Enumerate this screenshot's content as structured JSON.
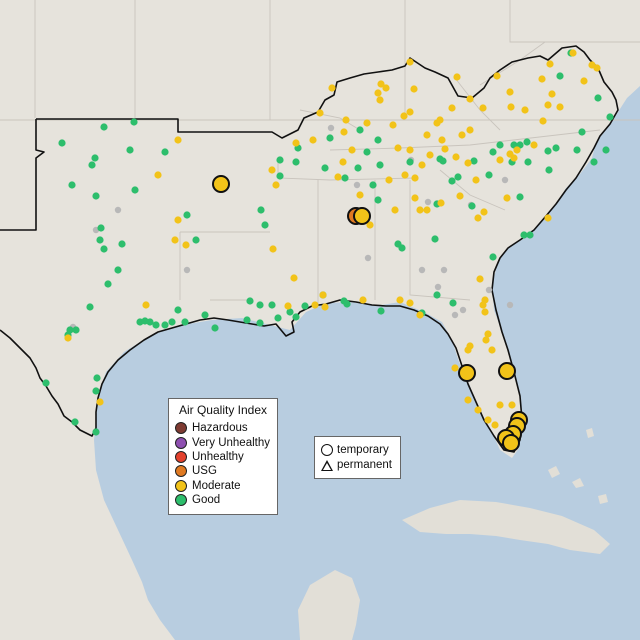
{
  "legend": {
    "title": "Air Quality Index",
    "categories": [
      {
        "label": "Hazardous",
        "color": "#7e3b32"
      },
      {
        "label": "Very Unhealthy",
        "color": "#8e4fb0"
      },
      {
        "label": "Unhealthy",
        "color": "#e3412d"
      },
      {
        "label": "USG",
        "color": "#e07a22"
      },
      {
        "label": "Moderate",
        "color": "#f2c319"
      },
      {
        "label": "Good",
        "color": "#2dbe6c"
      }
    ],
    "shapes": [
      {
        "label": "temporary",
        "icon": "circle-icon"
      },
      {
        "label": "permanent",
        "icon": "triangle-icon"
      }
    ]
  },
  "colors": {
    "land": "#e6e3dc",
    "water": "#b8cde0",
    "region_border": "#111111",
    "state_border": "#c9c4bd",
    "inactive_monitor": "#b8b8b8"
  },
  "monitors_small": [
    [
      62,
      143,
      "Good"
    ],
    [
      104,
      127,
      "Good"
    ],
    [
      134,
      122,
      "Good"
    ],
    [
      95,
      158,
      "Good"
    ],
    [
      92,
      165,
      "Good"
    ],
    [
      130,
      150,
      "Good"
    ],
    [
      165,
      152,
      "Good"
    ],
    [
      72,
      185,
      "Good"
    ],
    [
      96,
      196,
      "Good"
    ],
    [
      135,
      190,
      "Good"
    ],
    [
      101,
      228,
      "Good"
    ],
    [
      100,
      240,
      "Good"
    ],
    [
      122,
      244,
      "Good"
    ],
    [
      104,
      249,
      "Good"
    ],
    [
      118,
      270,
      "Good"
    ],
    [
      108,
      284,
      "Good"
    ],
    [
      90,
      307,
      "Good"
    ],
    [
      140,
      322,
      "Good"
    ],
    [
      145,
      321,
      "Good"
    ],
    [
      150,
      322,
      "Good"
    ],
    [
      156,
      325,
      "Good"
    ],
    [
      70,
      330,
      "Good"
    ],
    [
      68,
      335,
      "Good"
    ],
    [
      76,
      330,
      "Good"
    ],
    [
      165,
      325,
      "Good"
    ],
    [
      178,
      310,
      "Good"
    ],
    [
      172,
      322,
      "Good"
    ],
    [
      185,
      322,
      "Good"
    ],
    [
      46,
      383,
      "Good"
    ],
    [
      97,
      378,
      "Good"
    ],
    [
      96,
      391,
      "Good"
    ],
    [
      75,
      422,
      "Good"
    ],
    [
      96,
      432,
      "Good"
    ],
    [
      187,
      215,
      "Good"
    ],
    [
      196,
      240,
      "Good"
    ],
    [
      205,
      315,
      "Good"
    ],
    [
      215,
      328,
      "Good"
    ],
    [
      250,
      301,
      "Good"
    ],
    [
      260,
      305,
      "Good"
    ],
    [
      247,
      320,
      "Good"
    ],
    [
      260,
      323,
      "Good"
    ],
    [
      272,
      305,
      "Good"
    ],
    [
      278,
      318,
      "Good"
    ],
    [
      290,
      312,
      "Good"
    ],
    [
      296,
      317,
      "Good"
    ],
    [
      261,
      210,
      "Good"
    ],
    [
      265,
      225,
      "Good"
    ],
    [
      280,
      160,
      "Good"
    ],
    [
      296,
      162,
      "Good"
    ],
    [
      298,
      148,
      "Good"
    ],
    [
      280,
      176,
      "Good"
    ],
    [
      330,
      138,
      "Good"
    ],
    [
      325,
      168,
      "Good"
    ],
    [
      345,
      178,
      "Good"
    ],
    [
      358,
      168,
      "Good"
    ],
    [
      380,
      165,
      "Good"
    ],
    [
      373,
      185,
      "Good"
    ],
    [
      378,
      200,
      "Good"
    ],
    [
      398,
      244,
      "Good"
    ],
    [
      402,
      248,
      "Good"
    ],
    [
      435,
      239,
      "Good"
    ],
    [
      437,
      295,
      "Good"
    ],
    [
      453,
      303,
      "Good"
    ],
    [
      422,
      313,
      "Good"
    ],
    [
      344,
      301,
      "Good"
    ],
    [
      347,
      304,
      "Good"
    ],
    [
      381,
      311,
      "Good"
    ],
    [
      305,
      306,
      "Good"
    ],
    [
      323,
      295,
      "Good"
    ],
    [
      410,
      162,
      "Good"
    ],
    [
      440,
      159,
      "Good"
    ],
    [
      443,
      161,
      "Good"
    ],
    [
      474,
      161,
      "Good"
    ],
    [
      500,
      145,
      "Good"
    ],
    [
      493,
      152,
      "Good"
    ],
    [
      514,
      145,
      "Good"
    ],
    [
      520,
      145,
      "Good"
    ],
    [
      527,
      142,
      "Good"
    ],
    [
      512,
      162,
      "Good"
    ],
    [
      528,
      162,
      "Good"
    ],
    [
      548,
      151,
      "Good"
    ],
    [
      520,
      197,
      "Good"
    ],
    [
      524,
      235,
      "Good"
    ],
    [
      530,
      235,
      "Good"
    ],
    [
      493,
      257,
      "Good"
    ],
    [
      556,
      148,
      "Good"
    ],
    [
      577,
      150,
      "Good"
    ],
    [
      582,
      132,
      "Good"
    ],
    [
      594,
      162,
      "Good"
    ],
    [
      606,
      150,
      "Good"
    ],
    [
      610,
      117,
      "Good"
    ],
    [
      598,
      98,
      "Good"
    ],
    [
      560,
      76,
      "Good"
    ],
    [
      571,
      53,
      "Good"
    ],
    [
      549,
      170,
      "Good"
    ],
    [
      489,
      175,
      "Good"
    ],
    [
      437,
      204,
      "Good"
    ],
    [
      452,
      181,
      "Good"
    ],
    [
      367,
      152,
      "Good"
    ],
    [
      378,
      140,
      "Good"
    ],
    [
      360,
      130,
      "Good"
    ],
    [
      472,
      206,
      "Good"
    ],
    [
      458,
      177,
      "Good"
    ],
    [
      178,
      140,
      "Moderate"
    ],
    [
      158,
      175,
      "Moderate"
    ],
    [
      178,
      220,
      "Moderate"
    ],
    [
      175,
      240,
      "Moderate"
    ],
    [
      186,
      245,
      "Moderate"
    ],
    [
      146,
      305,
      "Moderate"
    ],
    [
      68,
      338,
      "Moderate"
    ],
    [
      100,
      402,
      "Moderate"
    ],
    [
      273,
      249,
      "Moderate"
    ],
    [
      272,
      170,
      "Moderate"
    ],
    [
      276,
      185,
      "Moderate"
    ],
    [
      294,
      278,
      "Moderate"
    ],
    [
      288,
      306,
      "Moderate"
    ],
    [
      315,
      305,
      "Moderate"
    ],
    [
      325,
      307,
      "Moderate"
    ],
    [
      323,
      295,
      "Moderate"
    ],
    [
      363,
      300,
      "Moderate"
    ],
    [
      400,
      300,
      "Moderate"
    ],
    [
      410,
      303,
      "Moderate"
    ],
    [
      420,
      315,
      "Moderate"
    ],
    [
      296,
      143,
      "Moderate"
    ],
    [
      313,
      140,
      "Moderate"
    ],
    [
      346,
      120,
      "Moderate"
    ],
    [
      344,
      132,
      "Moderate"
    ],
    [
      352,
      150,
      "Moderate"
    ],
    [
      343,
      162,
      "Moderate"
    ],
    [
      360,
      195,
      "Moderate"
    ],
    [
      365,
      215,
      "Moderate"
    ],
    [
      370,
      225,
      "Moderate"
    ],
    [
      393,
      125,
      "Moderate"
    ],
    [
      398,
      148,
      "Moderate"
    ],
    [
      405,
      175,
      "Moderate"
    ],
    [
      410,
      150,
      "Moderate"
    ],
    [
      410,
      112,
      "Moderate"
    ],
    [
      427,
      135,
      "Moderate"
    ],
    [
      380,
      100,
      "Moderate"
    ],
    [
      386,
      88,
      "Moderate"
    ],
    [
      381,
      84,
      "Moderate"
    ],
    [
      414,
      89,
      "Moderate"
    ],
    [
      410,
      62,
      "Moderate"
    ],
    [
      457,
      77,
      "Moderate"
    ],
    [
      452,
      108,
      "Moderate"
    ],
    [
      470,
      99,
      "Moderate"
    ],
    [
      497,
      76,
      "Moderate"
    ],
    [
      510,
      92,
      "Moderate"
    ],
    [
      542,
      79,
      "Moderate"
    ],
    [
      552,
      94,
      "Moderate"
    ],
    [
      548,
      105,
      "Moderate"
    ],
    [
      543,
      121,
      "Moderate"
    ],
    [
      525,
      110,
      "Moderate"
    ],
    [
      511,
      107,
      "Moderate"
    ],
    [
      483,
      108,
      "Moderate"
    ],
    [
      470,
      130,
      "Moderate"
    ],
    [
      462,
      135,
      "Moderate"
    ],
    [
      445,
      149,
      "Moderate"
    ],
    [
      430,
      155,
      "Moderate"
    ],
    [
      422,
      165,
      "Moderate"
    ],
    [
      415,
      178,
      "Moderate"
    ],
    [
      415,
      198,
      "Moderate"
    ],
    [
      420,
      210,
      "Moderate"
    ],
    [
      427,
      210,
      "Moderate"
    ],
    [
      441,
      203,
      "Moderate"
    ],
    [
      460,
      196,
      "Moderate"
    ],
    [
      468,
      163,
      "Moderate"
    ],
    [
      476,
      180,
      "Moderate"
    ],
    [
      500,
      160,
      "Moderate"
    ],
    [
      510,
      154,
      "Moderate"
    ],
    [
      517,
      150,
      "Moderate"
    ],
    [
      534,
      145,
      "Moderate"
    ],
    [
      514,
      158,
      "Moderate"
    ],
    [
      507,
      198,
      "Moderate"
    ],
    [
      478,
      218,
      "Moderate"
    ],
    [
      484,
      212,
      "Moderate"
    ],
    [
      548,
      218,
      "Moderate"
    ],
    [
      560,
      107,
      "Moderate"
    ],
    [
      584,
      81,
      "Moderate"
    ],
    [
      592,
      65,
      "Moderate"
    ],
    [
      597,
      68,
      "Moderate"
    ],
    [
      573,
      53,
      "Moderate"
    ],
    [
      550,
      64,
      "Moderate"
    ],
    [
      483,
      305,
      "Moderate"
    ],
    [
      485,
      312,
      "Moderate"
    ],
    [
      488,
      334,
      "Moderate"
    ],
    [
      492,
      350,
      "Moderate"
    ],
    [
      470,
      346,
      "Moderate"
    ],
    [
      455,
      368,
      "Moderate"
    ],
    [
      468,
      400,
      "Moderate"
    ],
    [
      478,
      410,
      "Moderate"
    ],
    [
      488,
      420,
      "Moderate"
    ],
    [
      495,
      425,
      "Moderate"
    ],
    [
      500,
      405,
      "Moderate"
    ],
    [
      512,
      405,
      "Moderate"
    ],
    [
      338,
      177,
      "Moderate"
    ],
    [
      378,
      93,
      "Moderate"
    ],
    [
      404,
      116,
      "Moderate"
    ],
    [
      332,
      88,
      "Moderate"
    ],
    [
      320,
      113,
      "Moderate"
    ],
    [
      480,
      279,
      "Moderate"
    ],
    [
      468,
      350,
      "Moderate"
    ],
    [
      367,
      123,
      "Moderate"
    ],
    [
      437,
      123,
      "Moderate"
    ],
    [
      456,
      157,
      "Moderate"
    ],
    [
      440,
      120,
      "Moderate"
    ],
    [
      389,
      180,
      "Moderate"
    ],
    [
      395,
      210,
      "Moderate"
    ],
    [
      442,
      140,
      "Moderate"
    ],
    [
      485,
      300,
      "Moderate"
    ],
    [
      486,
      340,
      "Moderate"
    ],
    [
      73,
      327,
      "Inactive"
    ],
    [
      96,
      230,
      "Inactive"
    ],
    [
      118,
      210,
      "Inactive"
    ],
    [
      187,
      270,
      "Inactive"
    ],
    [
      357,
      185,
      "Inactive"
    ],
    [
      422,
      270,
      "Inactive"
    ],
    [
      444,
      270,
      "Inactive"
    ],
    [
      368,
      258,
      "Inactive"
    ],
    [
      471,
      205,
      "Inactive"
    ],
    [
      455,
      315,
      "Inactive"
    ],
    [
      463,
      310,
      "Inactive"
    ],
    [
      510,
      305,
      "Inactive"
    ],
    [
      505,
      180,
      "Inactive"
    ],
    [
      428,
      202,
      "Inactive"
    ],
    [
      411,
      160,
      "Inactive"
    ],
    [
      489,
      290,
      "Inactive"
    ],
    [
      438,
      287,
      "Inactive"
    ],
    [
      331,
      128,
      "Inactive"
    ]
  ],
  "monitors_large": [
    [
      221,
      184,
      "Moderate"
    ],
    [
      356,
      216,
      "USG"
    ],
    [
      362,
      216,
      "Moderate"
    ],
    [
      467,
      373,
      "Moderate"
    ],
    [
      507,
      371,
      "Moderate"
    ],
    [
      519,
      420,
      "Moderate"
    ],
    [
      517,
      426,
      "Moderate"
    ],
    [
      513,
      434,
      "Moderate"
    ],
    [
      506,
      438,
      "Moderate"
    ],
    [
      511,
      443,
      "Moderate"
    ]
  ]
}
